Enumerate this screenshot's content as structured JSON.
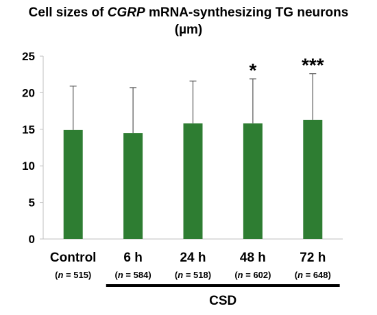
{
  "title": {
    "prefix": "Cell sizes of ",
    "gene": "CGRP",
    "suffix": " mRNA-synthesizing TG neurons",
    "line2": "(µm)"
  },
  "colors": {
    "bar": "#2e7d32",
    "error_bar": "#555555",
    "axis": "#bfbfbf",
    "bracket": "#000000"
  },
  "chart_data": {
    "type": "bar",
    "title": "Cell sizes of CGRP mRNA-synthesizing TG neurons (µm)",
    "categories": [
      "Control",
      "6 h",
      "24 h",
      "48 h",
      "72 h"
    ],
    "values": [
      14.9,
      14.5,
      15.8,
      15.8,
      16.3
    ],
    "error_plus": [
      6.0,
      6.2,
      5.8,
      6.1,
      6.3
    ],
    "n_labels": [
      "515",
      "584",
      "518",
      "602",
      "648"
    ],
    "n_prefix": "n",
    "significance": [
      "",
      "",
      "",
      "*",
      "***"
    ],
    "ylim": [
      0,
      25
    ],
    "yticks": [
      0,
      5,
      10,
      15,
      20,
      25
    ],
    "xlabel": "",
    "ylabel": "",
    "grid": false,
    "group_label": "CSD",
    "group_span": [
      "6 h",
      "72 h"
    ]
  }
}
